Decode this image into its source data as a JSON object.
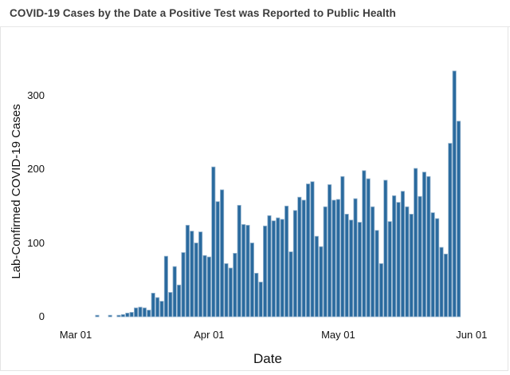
{
  "header": {
    "title": "COVID-19 Cases by the Date a Positive Test was Reported to Public Health"
  },
  "chart_data": {
    "type": "bar",
    "title": "COVID-19 Cases by the Date a Positive Test was Reported to Public Health",
    "xlabel": "Date",
    "ylabel": "Lab-Confirmed COVID-19 Cases",
    "bar_color": "#2a6a9e",
    "bar_edge_color": "#93b2cd",
    "background": "#ffffff",
    "grid": "off",
    "ylim": [
      0,
      340
    ],
    "y_ticks": [
      0,
      100,
      200,
      300
    ],
    "x_ticks": [
      "Mar 01",
      "Apr 01",
      "May 01",
      "Jun 01"
    ],
    "points": [
      {
        "d": "Mar 06",
        "v": 2
      },
      {
        "d": "Mar 09",
        "v": 2
      },
      {
        "d": "Mar 11",
        "v": 2
      },
      {
        "d": "Mar 12",
        "v": 3
      },
      {
        "d": "Mar 13",
        "v": 5
      },
      {
        "d": "Mar 14",
        "v": 6
      },
      {
        "d": "Mar 15",
        "v": 12
      },
      {
        "d": "Mar 16",
        "v": 13
      },
      {
        "d": "Mar 17",
        "v": 12
      },
      {
        "d": "Mar 18",
        "v": 9
      },
      {
        "d": "Mar 19",
        "v": 32
      },
      {
        "d": "Mar 20",
        "v": 26
      },
      {
        "d": "Mar 21",
        "v": 21
      },
      {
        "d": "Mar 22",
        "v": 82
      },
      {
        "d": "Mar 23",
        "v": 33
      },
      {
        "d": "Mar 24",
        "v": 68
      },
      {
        "d": "Mar 25",
        "v": 43
      },
      {
        "d": "Mar 26",
        "v": 87
      },
      {
        "d": "Mar 27",
        "v": 124
      },
      {
        "d": "Mar 28",
        "v": 116
      },
      {
        "d": "Mar 29",
        "v": 100
      },
      {
        "d": "Mar 30",
        "v": 115
      },
      {
        "d": "Mar 31",
        "v": 83
      },
      {
        "d": "Apr 01",
        "v": 81
      },
      {
        "d": "Apr 02",
        "v": 203
      },
      {
        "d": "Apr 03",
        "v": 156
      },
      {
        "d": "Apr 04",
        "v": 172
      },
      {
        "d": "Apr 05",
        "v": 72
      },
      {
        "d": "Apr 06",
        "v": 66
      },
      {
        "d": "Apr 07",
        "v": 86
      },
      {
        "d": "Apr 08",
        "v": 151
      },
      {
        "d": "Apr 09",
        "v": 125
      },
      {
        "d": "Apr 10",
        "v": 124
      },
      {
        "d": "Apr 11",
        "v": 100
      },
      {
        "d": "Apr 12",
        "v": 59
      },
      {
        "d": "Apr 13",
        "v": 47
      },
      {
        "d": "Apr 14",
        "v": 123
      },
      {
        "d": "Apr 15",
        "v": 137
      },
      {
        "d": "Apr 16",
        "v": 130
      },
      {
        "d": "Apr 17",
        "v": 134
      },
      {
        "d": "Apr 18",
        "v": 132
      },
      {
        "d": "Apr 19",
        "v": 150
      },
      {
        "d": "Apr 20",
        "v": 88
      },
      {
        "d": "Apr 21",
        "v": 144
      },
      {
        "d": "Apr 22",
        "v": 162
      },
      {
        "d": "Apr 23",
        "v": 158
      },
      {
        "d": "Apr 24",
        "v": 180
      },
      {
        "d": "Apr 25",
        "v": 183
      },
      {
        "d": "Apr 26",
        "v": 109
      },
      {
        "d": "Apr 27",
        "v": 95
      },
      {
        "d": "Apr 28",
        "v": 149
      },
      {
        "d": "Apr 29",
        "v": 179
      },
      {
        "d": "Apr 30",
        "v": 158
      },
      {
        "d": "May 01",
        "v": 159
      },
      {
        "d": "May 02",
        "v": 190
      },
      {
        "d": "May 03",
        "v": 139
      },
      {
        "d": "May 04",
        "v": 131
      },
      {
        "d": "May 05",
        "v": 160
      },
      {
        "d": "May 06",
        "v": 128
      },
      {
        "d": "May 07",
        "v": 198
      },
      {
        "d": "May 08",
        "v": 187
      },
      {
        "d": "May 09",
        "v": 149
      },
      {
        "d": "May 10",
        "v": 117
      },
      {
        "d": "May 11",
        "v": 72
      },
      {
        "d": "May 12",
        "v": 185
      },
      {
        "d": "May 13",
        "v": 129
      },
      {
        "d": "May 14",
        "v": 164
      },
      {
        "d": "May 15",
        "v": 155
      },
      {
        "d": "May 16",
        "v": 170
      },
      {
        "d": "May 17",
        "v": 149
      },
      {
        "d": "May 18",
        "v": 139
      },
      {
        "d": "May 19",
        "v": 201
      },
      {
        "d": "May 20",
        "v": 163
      },
      {
        "d": "May 21",
        "v": 196
      },
      {
        "d": "May 22",
        "v": 190
      },
      {
        "d": "May 23",
        "v": 141
      },
      {
        "d": "May 24",
        "v": 133
      },
      {
        "d": "May 25",
        "v": 94
      },
      {
        "d": "May 26",
        "v": 85
      },
      {
        "d": "May 27",
        "v": 235
      },
      {
        "d": "May 28",
        "v": 333
      },
      {
        "d": "May 29",
        "v": 265
      }
    ]
  }
}
